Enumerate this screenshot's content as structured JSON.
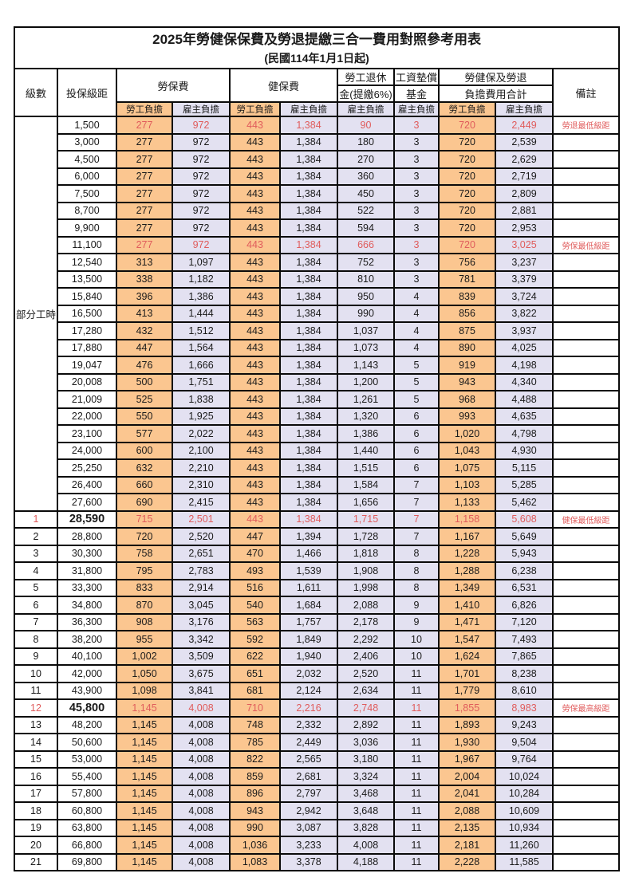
{
  "title": "2025年勞健保保費及勞退提繳三合一費用對照參考用表",
  "subtitle": "(民國114年1月1日起)",
  "colors": {
    "worker_bg": "#fbc690",
    "employer_bg": "#e3e1f1",
    "highlight_text": "#e05c5c",
    "border": "#0a0a0a"
  },
  "header": {
    "level": "級數",
    "bracket": "投保級距",
    "labor_ins": "勞保費",
    "health_ins": "健保費",
    "pension_line1": "勞工退休",
    "pension_line2": "金(提繳6%)",
    "wage_fund_line1": "工資墊償",
    "wage_fund_line2": "基金",
    "total_line1": "勞健保及勞退",
    "total_line2": "負擔費用合計",
    "remark": "備註",
    "worker": "勞工負擔",
    "employer": "雇主負擔"
  },
  "part_time_label": "部分工時",
  "rows": [
    {
      "level": "",
      "bracket": "1,500",
      "values": [
        "277",
        "972",
        "443",
        "1,384",
        "90",
        "3",
        "720",
        "2,449"
      ],
      "remark": "勞退最低級距",
      "highlight": true,
      "bold": false
    },
    {
      "level": "",
      "bracket": "3,000",
      "values": [
        "277",
        "972",
        "443",
        "1,384",
        "180",
        "3",
        "720",
        "2,539"
      ],
      "remark": "",
      "highlight": false,
      "bold": false
    },
    {
      "level": "",
      "bracket": "4,500",
      "values": [
        "277",
        "972",
        "443",
        "1,384",
        "270",
        "3",
        "720",
        "2,629"
      ],
      "remark": "",
      "highlight": false,
      "bold": false
    },
    {
      "level": "",
      "bracket": "6,000",
      "values": [
        "277",
        "972",
        "443",
        "1,384",
        "360",
        "3",
        "720",
        "2,719"
      ],
      "remark": "",
      "highlight": false,
      "bold": false
    },
    {
      "level": "",
      "bracket": "7,500",
      "values": [
        "277",
        "972",
        "443",
        "1,384",
        "450",
        "3",
        "720",
        "2,809"
      ],
      "remark": "",
      "highlight": false,
      "bold": false
    },
    {
      "level": "",
      "bracket": "8,700",
      "values": [
        "277",
        "972",
        "443",
        "1,384",
        "522",
        "3",
        "720",
        "2,881"
      ],
      "remark": "",
      "highlight": false,
      "bold": false
    },
    {
      "level": "",
      "bracket": "9,900",
      "values": [
        "277",
        "972",
        "443",
        "1,384",
        "594",
        "3",
        "720",
        "2,953"
      ],
      "remark": "",
      "highlight": false,
      "bold": false
    },
    {
      "level": "",
      "bracket": "11,100",
      "values": [
        "277",
        "972",
        "443",
        "1,384",
        "666",
        "3",
        "720",
        "3,025"
      ],
      "remark": "勞保最低級距",
      "highlight": true,
      "bold": false
    },
    {
      "level": "",
      "bracket": "12,540",
      "values": [
        "313",
        "1,097",
        "443",
        "1,384",
        "752",
        "3",
        "756",
        "3,237"
      ],
      "remark": "",
      "highlight": false,
      "bold": false
    },
    {
      "level": "",
      "bracket": "13,500",
      "values": [
        "338",
        "1,182",
        "443",
        "1,384",
        "810",
        "3",
        "781",
        "3,379"
      ],
      "remark": "",
      "highlight": false,
      "bold": false
    },
    {
      "level": "",
      "bracket": "15,840",
      "values": [
        "396",
        "1,386",
        "443",
        "1,384",
        "950",
        "4",
        "839",
        "3,724"
      ],
      "remark": "",
      "highlight": false,
      "bold": false
    },
    {
      "level": "",
      "bracket": "16,500",
      "values": [
        "413",
        "1,444",
        "443",
        "1,384",
        "990",
        "4",
        "856",
        "3,822"
      ],
      "remark": "",
      "highlight": false,
      "bold": false
    },
    {
      "level": "",
      "bracket": "17,280",
      "values": [
        "432",
        "1,512",
        "443",
        "1,384",
        "1,037",
        "4",
        "875",
        "3,937"
      ],
      "remark": "",
      "highlight": false,
      "bold": false
    },
    {
      "level": "",
      "bracket": "17,880",
      "values": [
        "447",
        "1,564",
        "443",
        "1,384",
        "1,073",
        "4",
        "890",
        "4,025"
      ],
      "remark": "",
      "highlight": false,
      "bold": false
    },
    {
      "level": "",
      "bracket": "19,047",
      "values": [
        "476",
        "1,666",
        "443",
        "1,384",
        "1,143",
        "5",
        "919",
        "4,198"
      ],
      "remark": "",
      "highlight": false,
      "bold": false
    },
    {
      "level": "",
      "bracket": "20,008",
      "values": [
        "500",
        "1,751",
        "443",
        "1,384",
        "1,200",
        "5",
        "943",
        "4,340"
      ],
      "remark": "",
      "highlight": false,
      "bold": false
    },
    {
      "level": "",
      "bracket": "21,009",
      "values": [
        "525",
        "1,838",
        "443",
        "1,384",
        "1,261",
        "5",
        "968",
        "4,488"
      ],
      "remark": "",
      "highlight": false,
      "bold": false
    },
    {
      "level": "",
      "bracket": "22,000",
      "values": [
        "550",
        "1,925",
        "443",
        "1,384",
        "1,320",
        "6",
        "993",
        "4,635"
      ],
      "remark": "",
      "highlight": false,
      "bold": false
    },
    {
      "level": "",
      "bracket": "23,100",
      "values": [
        "577",
        "2,022",
        "443",
        "1,384",
        "1,386",
        "6",
        "1,020",
        "4,798"
      ],
      "remark": "",
      "highlight": false,
      "bold": false
    },
    {
      "level": "",
      "bracket": "24,000",
      "values": [
        "600",
        "2,100",
        "443",
        "1,384",
        "1,440",
        "6",
        "1,043",
        "4,930"
      ],
      "remark": "",
      "highlight": false,
      "bold": false
    },
    {
      "level": "",
      "bracket": "25,250",
      "values": [
        "632",
        "2,210",
        "443",
        "1,384",
        "1,515",
        "6",
        "1,075",
        "5,115"
      ],
      "remark": "",
      "highlight": false,
      "bold": false
    },
    {
      "level": "",
      "bracket": "26,400",
      "values": [
        "660",
        "2,310",
        "443",
        "1,384",
        "1,584",
        "7",
        "1,103",
        "5,285"
      ],
      "remark": "",
      "highlight": false,
      "bold": false
    },
    {
      "level": "",
      "bracket": "27,600",
      "values": [
        "690",
        "2,415",
        "443",
        "1,384",
        "1,656",
        "7",
        "1,133",
        "5,462"
      ],
      "remark": "",
      "highlight": false,
      "bold": false
    },
    {
      "level": "1",
      "bracket": "28,590",
      "values": [
        "715",
        "2,501",
        "443",
        "1,384",
        "1,715",
        "7",
        "1,158",
        "5,608"
      ],
      "remark": "健保最低級距",
      "highlight": true,
      "bold": true
    },
    {
      "level": "2",
      "bracket": "28,800",
      "values": [
        "720",
        "2,520",
        "447",
        "1,394",
        "1,728",
        "7",
        "1,167",
        "5,649"
      ],
      "remark": "",
      "highlight": false,
      "bold": false
    },
    {
      "level": "3",
      "bracket": "30,300",
      "values": [
        "758",
        "2,651",
        "470",
        "1,466",
        "1,818",
        "8",
        "1,228",
        "5,943"
      ],
      "remark": "",
      "highlight": false,
      "bold": false
    },
    {
      "level": "4",
      "bracket": "31,800",
      "values": [
        "795",
        "2,783",
        "493",
        "1,539",
        "1,908",
        "8",
        "1,288",
        "6,238"
      ],
      "remark": "",
      "highlight": false,
      "bold": false
    },
    {
      "level": "5",
      "bracket": "33,300",
      "values": [
        "833",
        "2,914",
        "516",
        "1,611",
        "1,998",
        "8",
        "1,349",
        "6,531"
      ],
      "remark": "",
      "highlight": false,
      "bold": false
    },
    {
      "level": "6",
      "bracket": "34,800",
      "values": [
        "870",
        "3,045",
        "540",
        "1,684",
        "2,088",
        "9",
        "1,410",
        "6,826"
      ],
      "remark": "",
      "highlight": false,
      "bold": false
    },
    {
      "level": "7",
      "bracket": "36,300",
      "values": [
        "908",
        "3,176",
        "563",
        "1,757",
        "2,178",
        "9",
        "1,471",
        "7,120"
      ],
      "remark": "",
      "highlight": false,
      "bold": false
    },
    {
      "level": "8",
      "bracket": "38,200",
      "values": [
        "955",
        "3,342",
        "592",
        "1,849",
        "2,292",
        "10",
        "1,547",
        "7,493"
      ],
      "remark": "",
      "highlight": false,
      "bold": false
    },
    {
      "level": "9",
      "bracket": "40,100",
      "values": [
        "1,002",
        "3,509",
        "622",
        "1,940",
        "2,406",
        "10",
        "1,624",
        "7,865"
      ],
      "remark": "",
      "highlight": false,
      "bold": false
    },
    {
      "level": "10",
      "bracket": "42,000",
      "values": [
        "1,050",
        "3,675",
        "651",
        "2,032",
        "2,520",
        "11",
        "1,701",
        "8,238"
      ],
      "remark": "",
      "highlight": false,
      "bold": false
    },
    {
      "level": "11",
      "bracket": "43,900",
      "values": [
        "1,098",
        "3,841",
        "681",
        "2,124",
        "2,634",
        "11",
        "1,779",
        "8,610"
      ],
      "remark": "",
      "highlight": false,
      "bold": false
    },
    {
      "level": "12",
      "bracket": "45,800",
      "values": [
        "1,145",
        "4,008",
        "710",
        "2,216",
        "2,748",
        "11",
        "1,855",
        "8,983"
      ],
      "remark": "勞保最高級距",
      "highlight": true,
      "bold": true
    },
    {
      "level": "13",
      "bracket": "48,200",
      "values": [
        "1,145",
        "4,008",
        "748",
        "2,332",
        "2,892",
        "11",
        "1,893",
        "9,243"
      ],
      "remark": "",
      "highlight": false,
      "bold": false
    },
    {
      "level": "14",
      "bracket": "50,600",
      "values": [
        "1,145",
        "4,008",
        "785",
        "2,449",
        "3,036",
        "11",
        "1,930",
        "9,504"
      ],
      "remark": "",
      "highlight": false,
      "bold": false
    },
    {
      "level": "15",
      "bracket": "53,000",
      "values": [
        "1,145",
        "4,008",
        "822",
        "2,565",
        "3,180",
        "11",
        "1,967",
        "9,764"
      ],
      "remark": "",
      "highlight": false,
      "bold": false
    },
    {
      "level": "16",
      "bracket": "55,400",
      "values": [
        "1,145",
        "4,008",
        "859",
        "2,681",
        "3,324",
        "11",
        "2,004",
        "10,024"
      ],
      "remark": "",
      "highlight": false,
      "bold": false
    },
    {
      "level": "17",
      "bracket": "57,800",
      "values": [
        "1,145",
        "4,008",
        "896",
        "2,797",
        "3,468",
        "11",
        "2,041",
        "10,284"
      ],
      "remark": "",
      "highlight": false,
      "bold": false
    },
    {
      "level": "18",
      "bracket": "60,800",
      "values": [
        "1,145",
        "4,008",
        "943",
        "2,942",
        "3,648",
        "11",
        "2,088",
        "10,609"
      ],
      "remark": "",
      "highlight": false,
      "bold": false
    },
    {
      "level": "19",
      "bracket": "63,800",
      "values": [
        "1,145",
        "4,008",
        "990",
        "3,087",
        "3,828",
        "11",
        "2,135",
        "10,934"
      ],
      "remark": "",
      "highlight": false,
      "bold": false
    },
    {
      "level": "20",
      "bracket": "66,800",
      "values": [
        "1,145",
        "4,008",
        "1,036",
        "3,233",
        "4,008",
        "11",
        "2,181",
        "11,260"
      ],
      "remark": "",
      "highlight": false,
      "bold": false
    },
    {
      "level": "21",
      "bracket": "69,800",
      "values": [
        "1,145",
        "4,008",
        "1,083",
        "3,378",
        "4,188",
        "11",
        "2,228",
        "11,585"
      ],
      "remark": "",
      "highlight": false,
      "bold": false
    }
  ]
}
